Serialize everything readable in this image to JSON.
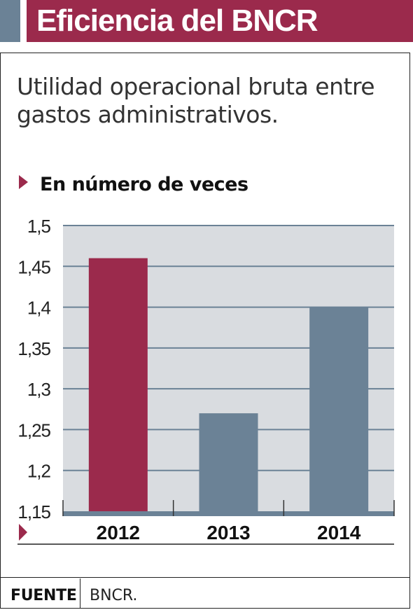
{
  "header": {
    "title": "Eficiencia del BNCR"
  },
  "subtitle": "Utilidad operacional bruta entre gastos administrativos.",
  "unit_label": "En número de veces",
  "footer": {
    "source_label": "FUENTE",
    "source_value": "BNCR."
  },
  "colors": {
    "highlight": "#9b2a4c",
    "bar": "#6b8296",
    "plot_bg": "#d9dce0",
    "grid": "#6b8296"
  },
  "chart_data": {
    "type": "bar",
    "title": "",
    "xlabel": "",
    "ylabel": "",
    "categories": [
      "2012",
      "2013",
      "2014"
    ],
    "values": [
      1.46,
      1.27,
      1.4
    ],
    "ylim": [
      1.15,
      1.5
    ],
    "yticks": [
      1.5,
      1.45,
      1.4,
      1.35,
      1.3,
      1.25,
      1.2,
      1.15
    ],
    "ytick_labels": [
      "1,5",
      "1,45",
      "1,4",
      "1,35",
      "1,3",
      "1,25",
      "1,2",
      "1,15"
    ],
    "highlight_index": 0,
    "grid": true,
    "legend": "none"
  }
}
